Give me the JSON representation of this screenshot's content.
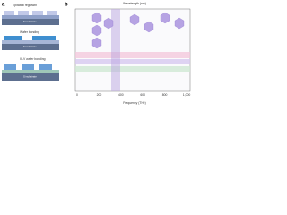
{
  "figure": {
    "panel_a": {
      "label": "a",
      "rows": [
        {
          "title": "Epitaxial regrowth",
          "substrate": "Si substrate"
        },
        {
          "title": "Wafer bonding",
          "substrate": "Si substrate"
        },
        {
          "title": "III-V wafer bonding",
          "substrate": "Si substrate"
        }
      ]
    },
    "panel_b": {
      "label": "b",
      "top_axis": "Wavelength (nm)",
      "x_axis": "Frequency (THz)",
      "x_ticks": [
        "0",
        "200",
        "400",
        "600",
        "800",
        "1,000"
      ]
    }
  }
}
